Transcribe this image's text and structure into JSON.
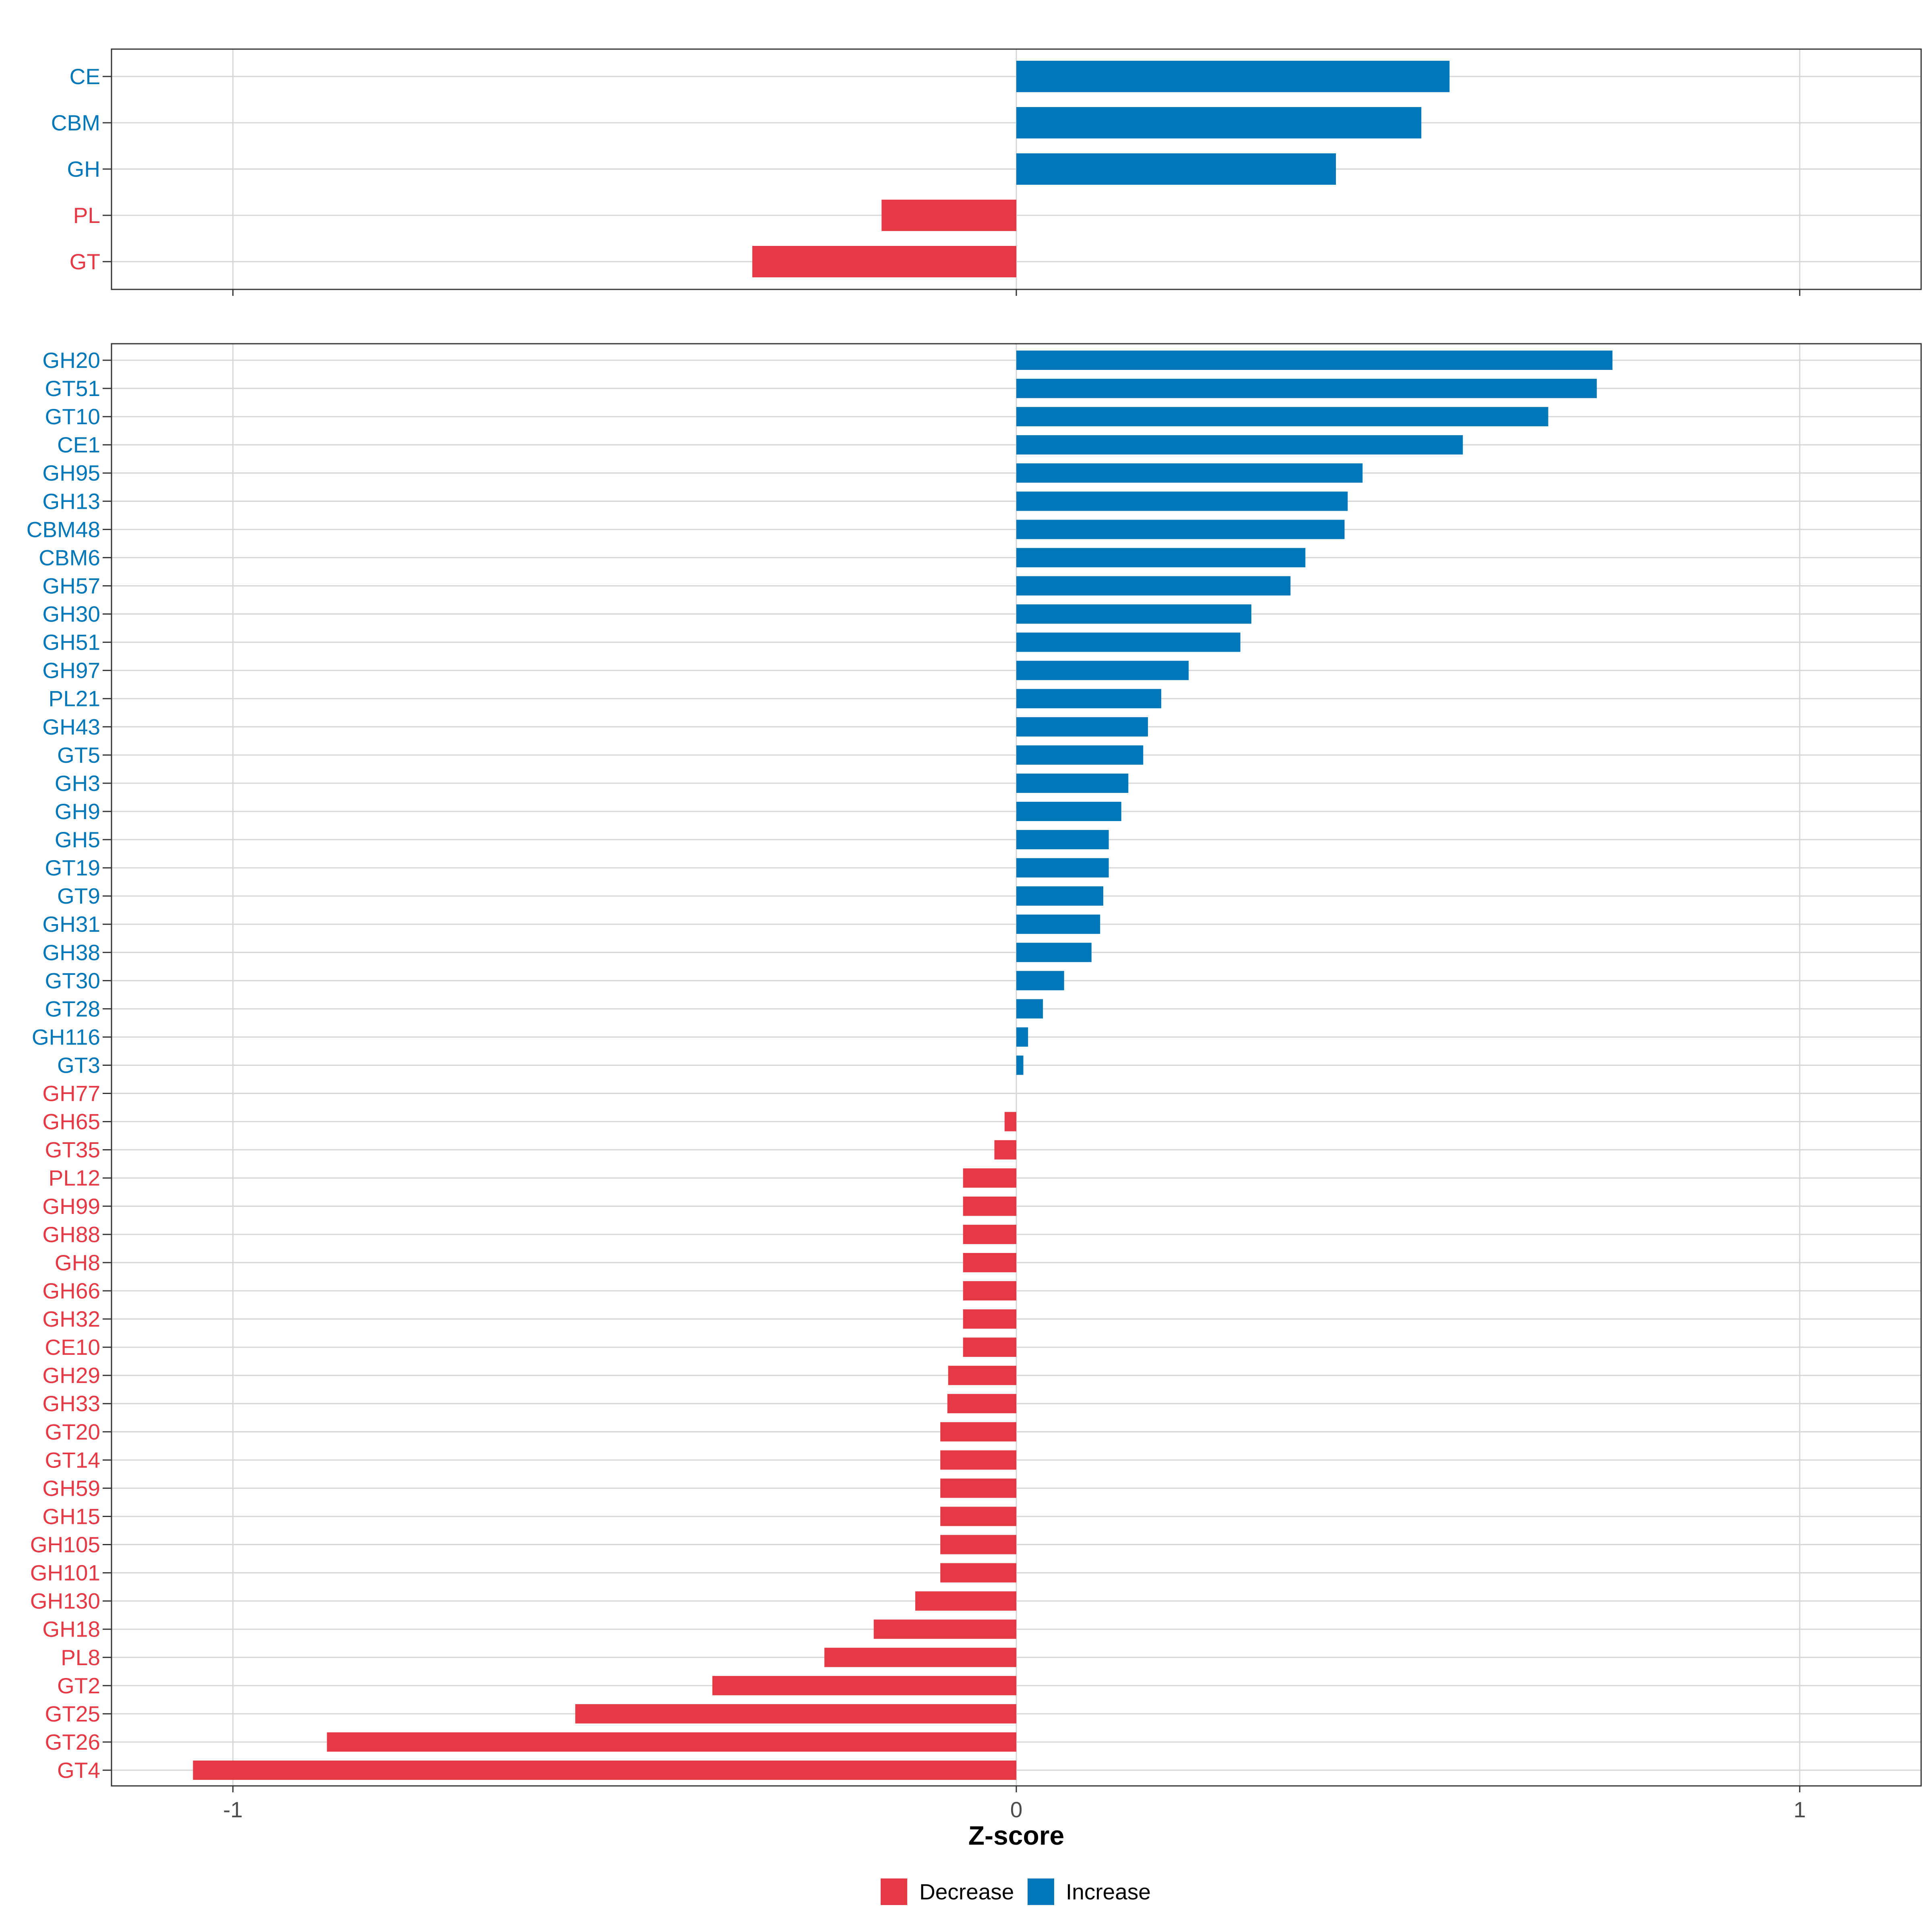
{
  "colors": {
    "increase": "#0077b8",
    "decrease": "#e63946"
  },
  "chart_data": [
    {
      "type": "bar",
      "orientation": "horizontal",
      "panel": "top",
      "categories": [
        "CE",
        "CBM",
        "GH",
        "PL",
        "GT"
      ],
      "values": [
        0.553,
        0.517,
        0.408,
        -0.172,
        -0.337
      ],
      "direction": [
        "Increase",
        "Increase",
        "Increase",
        "Decrease",
        "Decrease"
      ],
      "xlim": [
        -1.155,
        1.155
      ],
      "xticks": [
        -1,
        0,
        1
      ],
      "grid": true
    },
    {
      "type": "bar",
      "orientation": "horizontal",
      "panel": "bottom",
      "categories": [
        "GH20",
        "GT51",
        "GT10",
        "CE1",
        "GH95",
        "GH13",
        "CBM48",
        "CBM6",
        "GH57",
        "GH30",
        "GH51",
        "GH97",
        "PL21",
        "GH43",
        "GT5",
        "GH3",
        "GH9",
        "GH5",
        "GT19",
        "GT9",
        "GH31",
        "GH38",
        "GT30",
        "GT28",
        "GH116",
        "GT3",
        "GH77",
        "GH65",
        "GT35",
        "PL12",
        "GH99",
        "GH88",
        "GH8",
        "GH66",
        "GH32",
        "CE10",
        "GH29",
        "GH33",
        "GT20",
        "GT14",
        "GH59",
        "GH15",
        "GH105",
        "GH101",
        "GH130",
        "GH18",
        "PL8",
        "GT2",
        "GT25",
        "GT26",
        "GT4"
      ],
      "values": [
        0.761,
        0.741,
        0.679,
        0.57,
        0.442,
        0.423,
        0.419,
        0.369,
        0.35,
        0.3,
        0.286,
        0.22,
        0.185,
        0.168,
        0.162,
        0.143,
        0.134,
        0.118,
        0.118,
        0.111,
        0.107,
        0.096,
        0.061,
        0.034,
        0.015,
        0.009,
        0.0,
        -0.015,
        -0.028,
        -0.068,
        -0.068,
        -0.068,
        -0.068,
        -0.068,
        -0.068,
        -0.068,
        -0.087,
        -0.088,
        -0.097,
        -0.097,
        -0.097,
        -0.097,
        -0.097,
        -0.097,
        -0.129,
        -0.182,
        -0.245,
        -0.388,
        -0.563,
        -0.88,
        -1.051
      ],
      "direction": [
        "Increase",
        "Increase",
        "Increase",
        "Increase",
        "Increase",
        "Increase",
        "Increase",
        "Increase",
        "Increase",
        "Increase",
        "Increase",
        "Increase",
        "Increase",
        "Increase",
        "Increase",
        "Increase",
        "Increase",
        "Increase",
        "Increase",
        "Increase",
        "Increase",
        "Increase",
        "Increase",
        "Increase",
        "Increase",
        "Increase",
        "Decrease",
        "Decrease",
        "Decrease",
        "Decrease",
        "Decrease",
        "Decrease",
        "Decrease",
        "Decrease",
        "Decrease",
        "Decrease",
        "Decrease",
        "Decrease",
        "Decrease",
        "Decrease",
        "Decrease",
        "Decrease",
        "Decrease",
        "Decrease",
        "Decrease",
        "Decrease",
        "Decrease",
        "Decrease",
        "Decrease",
        "Decrease",
        "Decrease"
      ],
      "xlim": [
        -1.155,
        1.155
      ],
      "xticks": [
        -1,
        0,
        1
      ],
      "xtick_labels": [
        "-1",
        "0",
        "1"
      ],
      "xlabel": "Z-score",
      "grid": true
    }
  ],
  "legend": {
    "position": "bottom",
    "items": [
      {
        "label": "Decrease",
        "color_key": "decrease"
      },
      {
        "label": "Increase",
        "color_key": "increase"
      }
    ]
  }
}
